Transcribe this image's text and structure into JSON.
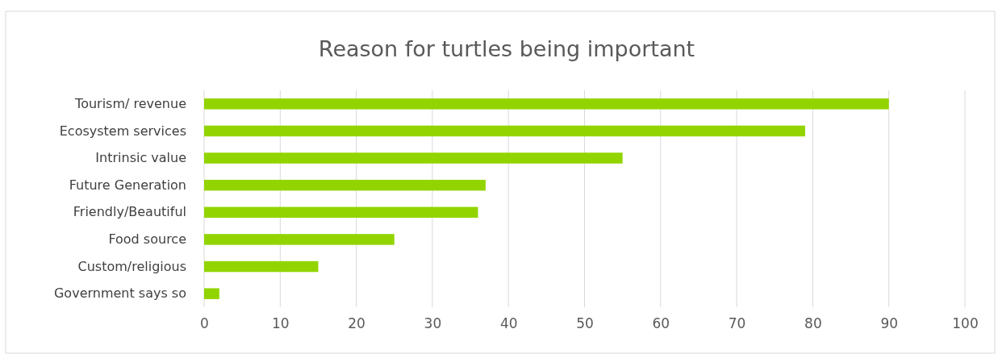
{
  "chart_data": {
    "type": "bar",
    "orientation": "horizontal",
    "title": "Reason for turtles being important",
    "categories": [
      "Tourism/ revenue",
      "Ecosystem services",
      "Intrinsic value",
      "Future Generation",
      "Friendly/Beautiful",
      "Food source",
      "Custom/religious",
      "Government says so"
    ],
    "values": [
      90,
      79,
      55,
      37,
      36,
      25,
      15,
      2
    ],
    "color": "#92d400",
    "xlim": [
      0,
      100
    ],
    "xticks": [
      0,
      10,
      20,
      30,
      40,
      50,
      60,
      70,
      80,
      90,
      100
    ],
    "grid": "x"
  }
}
